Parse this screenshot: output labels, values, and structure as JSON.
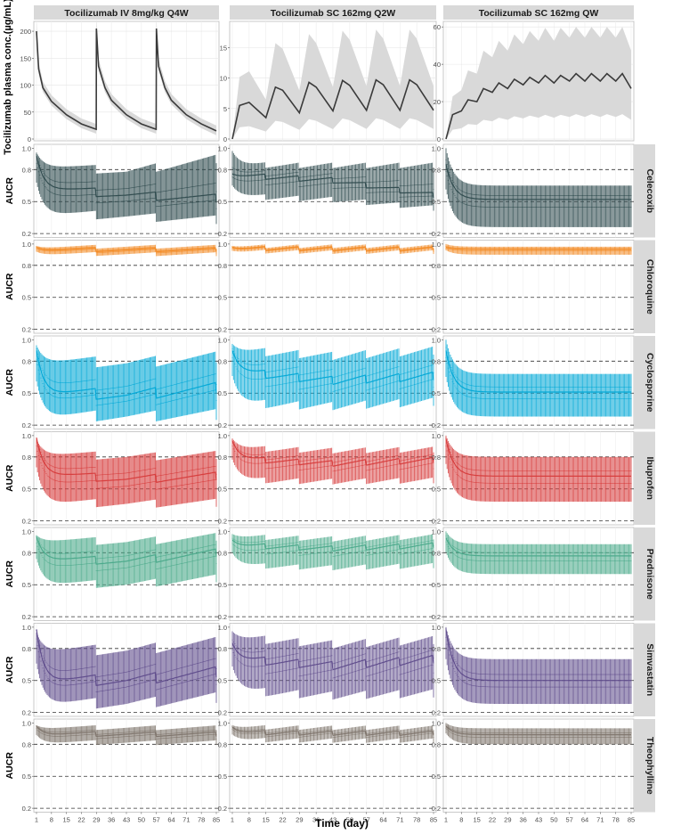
{
  "figure": {
    "top_ylabel": "Tocilizumab plasma conc.(µg/mL)",
    "row_ylabel": "AUCR",
    "xlabel": "Time (day)",
    "x_ticks": [
      1,
      8,
      15,
      22,
      29,
      36,
      43,
      50,
      57,
      64,
      71,
      78,
      85
    ],
    "aucr_ticks": [
      0.2,
      0.5,
      0.8,
      1.0
    ],
    "aucr_tick_labels": [
      "0.2",
      "0.5",
      "0.8",
      "1.0"
    ],
    "dashed_ref_lines": [
      0.2,
      0.5,
      0.8
    ]
  },
  "chart_data": {
    "type": "line",
    "xlabel": "Time (day)",
    "xlim": [
      1,
      85
    ],
    "columns": [
      {
        "title": "Tocilizumab IV 8mg/kg Q4W",
        "conc_ylim": [
          0,
          215
        ],
        "conc_yticks": [
          0,
          50,
          100,
          150,
          200
        ],
        "conc_ytick_labels": [
          "0",
          "50",
          "100",
          "150",
          "200"
        ],
        "conc_median_points": [
          [
            1,
            200
          ],
          [
            2,
            130
          ],
          [
            4,
            95
          ],
          [
            8,
            70
          ],
          [
            15,
            45
          ],
          [
            22,
            28
          ],
          [
            28.9,
            18
          ],
          [
            29,
            205
          ],
          [
            30,
            135
          ],
          [
            33,
            95
          ],
          [
            36,
            72
          ],
          [
            43,
            45
          ],
          [
            50,
            28
          ],
          [
            56.9,
            18
          ],
          [
            57,
            205
          ],
          [
            58,
            135
          ],
          [
            61,
            95
          ],
          [
            64,
            72
          ],
          [
            71,
            45
          ],
          [
            78,
            28
          ],
          [
            85,
            15
          ]
        ]
      },
      {
        "title": "Tocilizumab SC 162mg Q2W",
        "conc_ylim": [
          0,
          19
        ],
        "conc_yticks": [
          0,
          5,
          10,
          15
        ],
        "conc_ytick_labels": [
          "0",
          "5",
          "10",
          "15"
        ],
        "conc_median_points": [
          [
            1,
            0
          ],
          [
            4,
            5.5
          ],
          [
            8,
            6
          ],
          [
            15,
            3.5
          ],
          [
            19,
            8.5
          ],
          [
            22,
            8
          ],
          [
            29,
            4.3
          ],
          [
            33,
            9.3
          ],
          [
            36,
            8.5
          ],
          [
            43,
            4.6
          ],
          [
            47,
            9.6
          ],
          [
            50,
            8.8
          ],
          [
            57,
            4.7
          ],
          [
            61,
            9.7
          ],
          [
            64,
            8.9
          ],
          [
            71,
            4.7
          ],
          [
            75,
            9.7
          ],
          [
            78,
            8.9
          ],
          [
            85,
            4.7
          ]
        ]
      },
      {
        "title": "Tocilizumab SC 162mg QW",
        "conc_ylim": [
          0,
          62
        ],
        "conc_yticks": [
          0,
          20,
          40,
          60
        ],
        "conc_ytick_labels": [
          "0",
          "20",
          "40",
          "60"
        ],
        "conc_median_points": [
          [
            1,
            0
          ],
          [
            4,
            13
          ],
          [
            8,
            15
          ],
          [
            11,
            21
          ],
          [
            15,
            20
          ],
          [
            18,
            27
          ],
          [
            22,
            25
          ],
          [
            25,
            30
          ],
          [
            29,
            27
          ],
          [
            32,
            32
          ],
          [
            36,
            29
          ],
          [
            39,
            33
          ],
          [
            43,
            30
          ],
          [
            46,
            34
          ],
          [
            50,
            30
          ],
          [
            53,
            34
          ],
          [
            57,
            31
          ],
          [
            60,
            35
          ],
          [
            64,
            31
          ],
          [
            67,
            35
          ],
          [
            71,
            31
          ],
          [
            74,
            35
          ],
          [
            78,
            31
          ],
          [
            81,
            35
          ],
          [
            85,
            27
          ]
        ]
      }
    ],
    "rows": [
      {
        "drug": "Celecoxib",
        "color": "#2e4a4d",
        "median": [
          0.93,
          0.76,
          0.85
        ],
        "steady": [
          [
            0.64,
            0.56,
            0.53
          ],
          [
            0.75,
            0.7,
            0.56
          ],
          [
            0.52,
            0.52,
            0.52
          ]
        ],
        "hi": [
          [
            0.85,
            0.78,
            0.9
          ],
          [
            0.84,
            0.84,
            0.84
          ],
          [
            0.65,
            0.65,
            0.65
          ]
        ],
        "lo": [
          [
            0.4,
            0.36,
            0.33
          ],
          [
            0.55,
            0.52,
            0.44
          ],
          [
            0.26,
            0.26,
            0.26
          ]
        ]
      },
      {
        "drug": "Chloroquine",
        "color": "#f28c28",
        "median": [
          0.97,
          0.97,
          0.97
        ],
        "steady": [
          [
            0.95,
            0.945,
            0.945
          ],
          [
            0.96,
            0.955,
            0.955
          ],
          [
            0.95,
            0.95,
            0.95
          ]
        ],
        "hi": [
          [
            0.975,
            0.975,
            0.975
          ],
          [
            0.98,
            0.98,
            0.98
          ],
          [
            0.975,
            0.975,
            0.975
          ]
        ],
        "lo": [
          [
            0.91,
            0.905,
            0.905
          ],
          [
            0.93,
            0.925,
            0.925
          ],
          [
            0.9,
            0.9,
            0.9
          ]
        ]
      },
      {
        "drug": "Cyclosporine",
        "color": "#00a8d6",
        "median": [
          0.9,
          0.9,
          0.9
        ],
        "steady": [
          [
            0.52,
            0.48,
            0.55
          ],
          [
            0.7,
            0.62,
            0.66
          ],
          [
            0.51,
            0.51,
            0.51
          ]
        ],
        "hi": [
          [
            0.82,
            0.78,
            0.84
          ],
          [
            0.9,
            0.85,
            0.9
          ],
          [
            0.68,
            0.68,
            0.68
          ]
        ],
        "lo": [
          [
            0.3,
            0.28,
            0.3
          ],
          [
            0.4,
            0.38,
            0.42
          ],
          [
            0.28,
            0.28,
            0.28
          ]
        ]
      },
      {
        "drug": "Ibuprofen",
        "color": "#d63b3b",
        "median": [
          0.98,
          0.95,
          0.97
        ],
        "steady": [
          [
            0.65,
            0.59,
            0.62
          ],
          [
            0.78,
            0.74,
            0.77
          ],
          [
            0.62,
            0.62,
            0.62
          ]
        ],
        "hi": [
          [
            0.84,
            0.8,
            0.82
          ],
          [
            0.88,
            0.86,
            0.87
          ],
          [
            0.8,
            0.8,
            0.8
          ]
        ],
        "lo": [
          [
            0.38,
            0.36,
            0.37
          ],
          [
            0.58,
            0.57,
            0.58
          ],
          [
            0.38,
            0.38,
            0.38
          ]
        ]
      },
      {
        "drug": "Prednisone",
        "color": "#4aa98a",
        "median": [
          0.95,
          0.92,
          0.94
        ],
        "steady": [
          [
            0.75,
            0.72,
            0.8
          ],
          [
            0.87,
            0.84,
            0.87
          ],
          [
            0.77,
            0.77,
            0.77
          ]
        ],
        "hi": [
          [
            0.93,
            0.9,
            0.95
          ],
          [
            0.95,
            0.93,
            0.95
          ],
          [
            0.88,
            0.88,
            0.88
          ]
        ],
        "lo": [
          [
            0.52,
            0.5,
            0.56
          ],
          [
            0.68,
            0.66,
            0.68
          ],
          [
            0.6,
            0.6,
            0.6
          ]
        ]
      },
      {
        "drug": "Simvastatin",
        "color": "#5e4b8b",
        "median": [
          0.98,
          0.85,
          0.98
        ],
        "steady": [
          [
            0.51,
            0.5,
            0.58
          ],
          [
            0.7,
            0.64,
            0.7
          ],
          [
            0.5,
            0.5,
            0.5
          ]
        ],
        "hi": [
          [
            0.8,
            0.78,
            0.86
          ],
          [
            0.9,
            0.84,
            0.88
          ],
          [
            0.7,
            0.7,
            0.7
          ]
        ],
        "lo": [
          [
            0.3,
            0.28,
            0.34
          ],
          [
            0.4,
            0.36,
            0.38
          ],
          [
            0.28,
            0.28,
            0.28
          ]
        ]
      },
      {
        "drug": "Theophylline",
        "color": "#7d736a",
        "median": [
          0.97,
          0.96,
          0.97
        ],
        "steady": [
          [
            0.9,
            0.895,
            0.895
          ],
          [
            0.91,
            0.905,
            0.905
          ],
          [
            0.89,
            0.89,
            0.89
          ]
        ],
        "hi": [
          [
            0.96,
            0.955,
            0.955
          ],
          [
            0.96,
            0.955,
            0.955
          ],
          [
            0.95,
            0.95,
            0.95
          ]
        ],
        "lo": [
          [
            0.82,
            0.815,
            0.815
          ],
          [
            0.84,
            0.835,
            0.835
          ],
          [
            0.8,
            0.8,
            0.8
          ]
        ]
      }
    ]
  }
}
